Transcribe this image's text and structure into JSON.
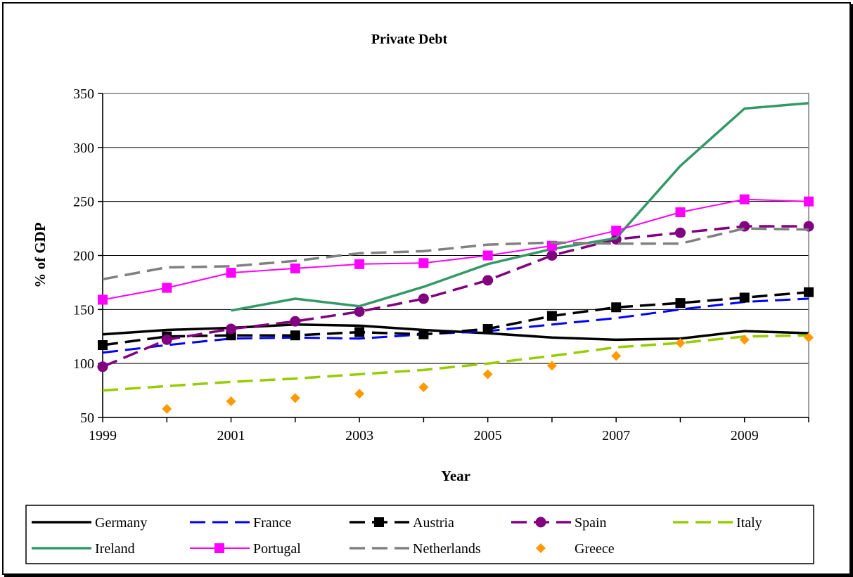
{
  "chart_data": {
    "type": "line",
    "title": "Private Debt",
    "xlabel": "Year",
    "ylabel": "% of GDP",
    "x": [
      1999,
      2000,
      2001,
      2002,
      2003,
      2004,
      2005,
      2006,
      2007,
      2008,
      2009,
      2010
    ],
    "x_ticks": [
      "1999",
      "2001",
      "2003",
      "2005",
      "2007",
      "2009"
    ],
    "y_ticks": [
      "50",
      "100",
      "150",
      "200",
      "250",
      "300",
      "350"
    ],
    "xlim": [
      1999,
      2010
    ],
    "ylim": [
      50,
      350
    ],
    "grid": "horizontal",
    "legend": "bottom",
    "series": [
      {
        "name": "Germany",
        "color": "#000000",
        "dash": "solid",
        "marker": "none",
        "width": 3.5,
        "values": [
          127,
          131,
          133,
          136,
          135,
          131,
          128,
          124,
          122,
          123,
          130,
          128
        ]
      },
      {
        "name": "France",
        "color": "#0000ff",
        "dash": "dashed",
        "marker": "none",
        "width": 3,
        "values": [
          110,
          117,
          123,
          124,
          123,
          127,
          130,
          136,
          142,
          150,
          157,
          160
        ]
      },
      {
        "name": "Austria",
        "color": "#000000",
        "dash": "dashed",
        "marker": "square",
        "width": 3.5,
        "values": [
          117,
          125,
          126,
          126,
          129,
          127,
          132,
          144,
          152,
          156,
          161,
          166
        ]
      },
      {
        "name": "Spain",
        "color": "#800080",
        "dash": "dashed",
        "marker": "circle",
        "width": 3.5,
        "values": [
          97,
          122,
          132,
          139,
          148,
          160,
          177,
          200,
          215,
          221,
          227,
          227
        ]
      },
      {
        "name": "Italy",
        "color": "#99cc00",
        "dash": "dashed",
        "marker": "none",
        "width": 3.5,
        "values": [
          75,
          79,
          83,
          86,
          90,
          94,
          100,
          107,
          115,
          119,
          125,
          126
        ]
      },
      {
        "name": "Ireland",
        "color": "#339966",
        "dash": "solid",
        "marker": "none",
        "width": 3.5,
        "values": [
          null,
          null,
          149,
          160,
          153,
          171,
          192,
          206,
          216,
          283,
          336,
          341
        ]
      },
      {
        "name": "Portugal",
        "color": "#ff00ff",
        "dash": "solid",
        "marker": "square",
        "width": 2,
        "values": [
          159,
          170,
          184,
          188,
          192,
          193,
          200,
          209,
          223,
          240,
          252,
          250
        ]
      },
      {
        "name": "Netherlands",
        "color": "#808080",
        "dash": "dashed",
        "marker": "none",
        "width": 3.5,
        "values": [
          178,
          189,
          190,
          195,
          202,
          204,
          210,
          212,
          211,
          211,
          225,
          224
        ]
      },
      {
        "name": "Greece",
        "color": "#ff9900",
        "dash": "none",
        "marker": "diamond",
        "width": 0,
        "values": [
          null,
          58,
          65,
          68,
          72,
          78,
          90,
          98,
          107,
          119,
          122,
          124
        ]
      }
    ]
  }
}
